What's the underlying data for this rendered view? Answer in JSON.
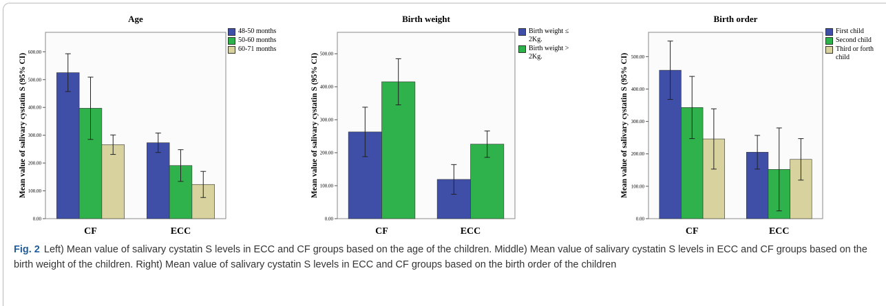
{
  "chart_data": [
    {
      "type": "bar",
      "title": "Age",
      "ylabel": "Mean value of salivary cystatin S (95% CI)",
      "categories": [
        "CF",
        "ECC"
      ],
      "series": [
        {
          "name": "48-50 months",
          "color": "#3f4fa8",
          "values": [
            525,
            273
          ],
          "errors": [
            68,
            35
          ]
        },
        {
          "name": "50-60 months",
          "color": "#2fb24b",
          "values": [
            397,
            191
          ],
          "errors": [
            112,
            57
          ]
        },
        {
          "name": "60-71 months",
          "color": "#d8d29e",
          "values": [
            266,
            123
          ],
          "errors": [
            35,
            47
          ]
        }
      ],
      "ylim": [
        0,
        670
      ],
      "yticks": [
        {
          "value": 0,
          "label": "0.00"
        },
        {
          "value": 100,
          "label": "100.00"
        },
        {
          "value": 200,
          "label": "200.00"
        },
        {
          "value": 300,
          "label": "300.00"
        },
        {
          "value": 400,
          "label": "400.00"
        },
        {
          "value": 500,
          "label": "500.00"
        },
        {
          "value": 600,
          "label": "600.00"
        }
      ]
    },
    {
      "type": "bar",
      "title": "Birth weight",
      "ylabel": "Mean value of salivary cystatin S (95% CI)",
      "categories": [
        "CF",
        "ECC"
      ],
      "series": [
        {
          "name": "Birth weight ≤ 2Kg.",
          "color": "#3f4fa8",
          "values": [
            263,
            119
          ],
          "errors": [
            75,
            45
          ]
        },
        {
          "name": "Birth weight > 2Kg.",
          "color": "#2fb24b",
          "values": [
            415,
            226
          ],
          "errors": [
            70,
            40
          ]
        }
      ],
      "ylim": [
        0,
        565
      ],
      "yticks": [
        {
          "value": 0,
          "label": "0.00"
        },
        {
          "value": 100,
          "label": "100.00"
        },
        {
          "value": 200,
          "label": "200.00"
        },
        {
          "value": 300,
          "label": "300.00"
        },
        {
          "value": 400,
          "label": "400.00"
        },
        {
          "value": 500,
          "label": "500.00"
        }
      ]
    },
    {
      "type": "bar",
      "title": "Birth order",
      "ylabel": "Mean value of salivary cystatin S (95% CI)",
      "categories": [
        "CF",
        "ECC"
      ],
      "series": [
        {
          "name": "First child",
          "color": "#3f4fa8",
          "values": [
            458,
            205
          ],
          "errors": [
            90,
            52
          ]
        },
        {
          "name": "Second child",
          "color": "#2fb24b",
          "values": [
            343,
            152
          ],
          "errors": [
            96,
            128
          ]
        },
        {
          "name": "Third or forth child",
          "color": "#d8d29e",
          "values": [
            246,
            183
          ],
          "errors": [
            93,
            64
          ]
        }
      ],
      "ylim": [
        0,
        575
      ],
      "yticks": [
        {
          "value": 0,
          "label": "0.00"
        },
        {
          "value": 100,
          "label": "100.00"
        },
        {
          "value": 200,
          "label": "200.00"
        },
        {
          "value": 300,
          "label": "300.00"
        },
        {
          "value": 400,
          "label": "400.00"
        },
        {
          "value": 500,
          "label": "500.00"
        }
      ]
    }
  ],
  "caption": {
    "label": "Fig. 2",
    "text": "Left) Mean value of salivary cystatin S levels in ECC and CF groups based on the age of the children. Middle) Mean value of salivary cystatin S levels in ECC and CF groups based on the birth weight of the children. Right) Mean value of salivary cystatin S levels in ECC and CF groups based on the birth order of the children"
  }
}
